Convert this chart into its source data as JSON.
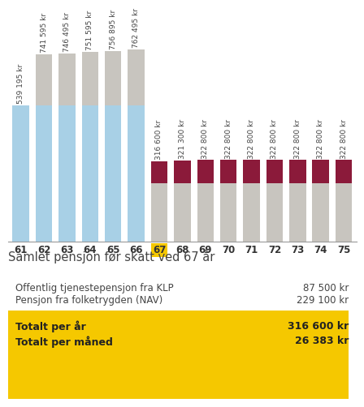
{
  "ages": [
    61,
    62,
    63,
    64,
    65,
    66,
    67,
    68,
    69,
    70,
    71,
    72,
    73,
    74,
    75
  ],
  "bar_labels": [
    "539 195 kr",
    "741 595 kr",
    "746 495 kr",
    "751 595 kr",
    "756 895 kr",
    "762 495 kr",
    "316 600 kr",
    "321 300 kr",
    "322 800 kr",
    "322 800 kr",
    "322 800 kr",
    "322 800 kr",
    "322 800 kr",
    "322 800 kr",
    "322 800 kr"
  ],
  "blue_bottom": [
    539195,
    539195,
    539195,
    539195,
    539195,
    539195,
    0,
    0,
    0,
    0,
    0,
    0,
    0,
    0,
    0
  ],
  "gray_segment": [
    0,
    202400,
    207300,
    212400,
    217700,
    223300,
    229100,
    229100,
    229100,
    229100,
    229100,
    229100,
    229100,
    229100,
    229100
  ],
  "dark_red_segment": [
    0,
    0,
    0,
    0,
    0,
    0,
    87500,
    92200,
    93700,
    93700,
    93700,
    93700,
    93700,
    93700,
    93700
  ],
  "highlight_age": 67,
  "highlight_color": "#f5c800",
  "blue_color": "#a8d0e6",
  "gray_color": "#c8c5bf",
  "dark_red_color": "#8b1a3a",
  "bar_label_fontsize": 6.5,
  "title_text": "Samlet pensjon før skatt ved 67 år",
  "row1_label": "Offentlig tjenestepensjon fra KLP",
  "row1_value": "87 500 kr",
  "row2_label": "Pensjon fra folketrygden (NAV)",
  "row2_value": "229 100 kr",
  "total_year_label": "Totalt per år",
  "total_year_value": "316 600 kr",
  "total_month_label": "Totalt per måned",
  "total_month_value": "26 383 kr",
  "yellow_color": "#f5c800",
  "background_color": "#ffffff",
  "ylim_max": 870000
}
